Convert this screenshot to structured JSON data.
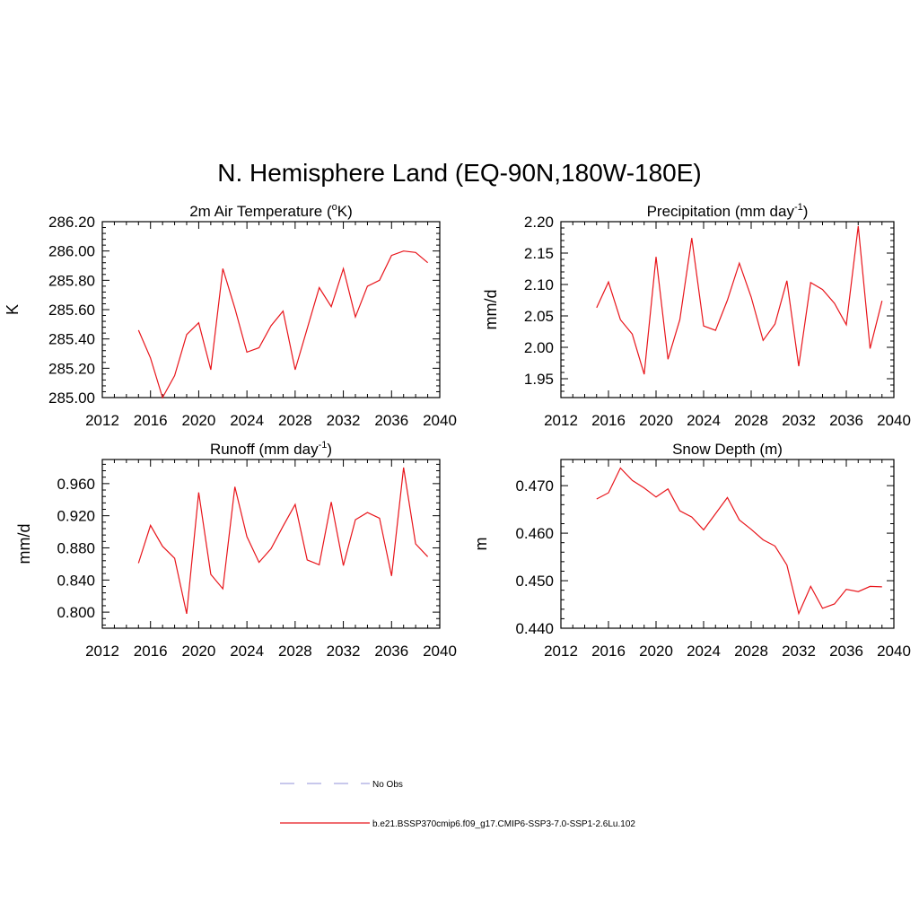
{
  "title": "N. Hemisphere Land (EQ-90N,180W-180E)",
  "chart_data": [
    {
      "type": "line",
      "title": "2m Air Temperature (",
      "title_sup": "o",
      "title_after": "K)",
      "ylabel": "K",
      "xlim": [
        2012,
        2040
      ],
      "ylim": [
        285.0,
        286.2
      ],
      "xticks": [
        2012,
        2016,
        2020,
        2024,
        2028,
        2032,
        2036,
        2040
      ],
      "yticks": [
        285.0,
        285.2,
        285.4,
        285.6,
        285.8,
        286.0,
        286.2
      ],
      "ytick_labels": [
        "285.00",
        "285.20",
        "285.40",
        "285.60",
        "285.80",
        "286.00",
        "286.20"
      ],
      "series": [
        {
          "color": "#e8151b",
          "x": [
            2015,
            2016,
            2017,
            2018,
            2019,
            2020,
            2021,
            2022,
            2023,
            2024,
            2025,
            2026,
            2027,
            2028,
            2029,
            2030,
            2031,
            2032,
            2033,
            2034,
            2035,
            2036,
            2037,
            2038,
            2039
          ],
          "y": [
            285.46,
            285.27,
            285.0,
            285.15,
            285.43,
            285.51,
            285.19,
            285.88,
            285.61,
            285.31,
            285.34,
            285.49,
            285.59,
            285.19,
            285.47,
            285.75,
            285.62,
            285.88,
            285.55,
            285.76,
            285.8,
            285.97,
            286.0,
            285.99,
            285.92
          ]
        }
      ]
    },
    {
      "type": "line",
      "title": "Precipitation (mm day",
      "title_sup": "-1",
      "title_after": ")",
      "ylabel": "mm/d",
      "xlim": [
        2012,
        2040
      ],
      "ylim": [
        1.92,
        2.2
      ],
      "xticks": [
        2012,
        2016,
        2020,
        2024,
        2028,
        2032,
        2036,
        2040
      ],
      "yticks": [
        1.95,
        2.0,
        2.05,
        2.1,
        2.15,
        2.2
      ],
      "ytick_labels": [
        "1.95",
        "2.00",
        "2.05",
        "2.10",
        "2.15",
        "2.20"
      ],
      "series": [
        {
          "color": "#e8151b",
          "x": [
            2015,
            2016,
            2017,
            2018,
            2019,
            2020,
            2021,
            2022,
            2023,
            2024,
            2025,
            2026,
            2027,
            2028,
            2029,
            2030,
            2031,
            2032,
            2033,
            2034,
            2035,
            2036,
            2037,
            2038,
            2039
          ],
          "y": [
            2.063,
            2.104,
            2.044,
            2.021,
            1.957,
            2.144,
            1.981,
            2.044,
            2.174,
            2.034,
            2.027,
            2.075,
            2.134,
            2.08,
            2.011,
            2.037,
            2.106,
            1.97,
            2.103,
            2.092,
            2.07,
            2.036,
            2.193,
            1.998,
            2.074
          ]
        }
      ]
    },
    {
      "type": "line",
      "title": "Runoff (mm day",
      "title_sup": "-1",
      "title_after": ")",
      "ylabel": "mm/d",
      "xlim": [
        2012,
        2040
      ],
      "ylim": [
        0.78,
        0.99
      ],
      "xticks": [
        2012,
        2016,
        2020,
        2024,
        2028,
        2032,
        2036,
        2040
      ],
      "yticks": [
        0.8,
        0.84,
        0.88,
        0.92,
        0.96
      ],
      "ytick_labels": [
        "0.800",
        "0.840",
        "0.880",
        "0.920",
        "0.960"
      ],
      "series": [
        {
          "color": "#e8151b",
          "x": [
            2015,
            2016,
            2017,
            2018,
            2019,
            2020,
            2021,
            2022,
            2023,
            2024,
            2025,
            2026,
            2027,
            2028,
            2029,
            2030,
            2031,
            2032,
            2033,
            2034,
            2035,
            2036,
            2037,
            2038,
            2039
          ],
          "y": [
            0.861,
            0.908,
            0.882,
            0.867,
            0.798,
            0.949,
            0.847,
            0.829,
            0.956,
            0.894,
            0.862,
            0.879,
            0.907,
            0.934,
            0.865,
            0.859,
            0.937,
            0.858,
            0.915,
            0.924,
            0.917,
            0.845,
            0.98,
            0.885,
            0.869
          ]
        }
      ]
    },
    {
      "type": "line",
      "title": "Snow Depth (m)",
      "ylabel": "m",
      "xlim": [
        2012,
        2040
      ],
      "ylim": [
        0.44,
        0.4755
      ],
      "xticks": [
        2012,
        2016,
        2020,
        2024,
        2028,
        2032,
        2036,
        2040
      ],
      "yticks": [
        0.44,
        0.45,
        0.46,
        0.47
      ],
      "ytick_labels": [
        "0.440",
        "0.450",
        "0.460",
        "0.470"
      ],
      "series": [
        {
          "color": "#e8151b",
          "x": [
            2015,
            2016,
            2017,
            2018,
            2019,
            2020,
            2021,
            2022,
            2023,
            2024,
            2025,
            2026,
            2027,
            2028,
            2029,
            2030,
            2031,
            2032,
            2033,
            2034,
            2035,
            2036,
            2037,
            2038,
            2039
          ],
          "y": [
            0.4672,
            0.4685,
            0.4737,
            0.4711,
            0.4695,
            0.4676,
            0.4693,
            0.4647,
            0.4634,
            0.4607,
            0.4641,
            0.4675,
            0.4628,
            0.4608,
            0.4586,
            0.4573,
            0.4533,
            0.4431,
            0.4488,
            0.4442,
            0.4451,
            0.4482,
            0.4477,
            0.4488,
            0.4487
          ]
        }
      ]
    }
  ],
  "legend": {
    "placement": "bottom-center",
    "items": [
      {
        "label": "No Obs",
        "color": "#b5b5e6",
        "dashed": true
      },
      {
        "label": "b.e21.BSSP370cmip6.f09_g17.CMIP6-SSP3-7.0-SSP1-2.6Lu.102",
        "color": "#e8151b",
        "dashed": false
      }
    ]
  }
}
